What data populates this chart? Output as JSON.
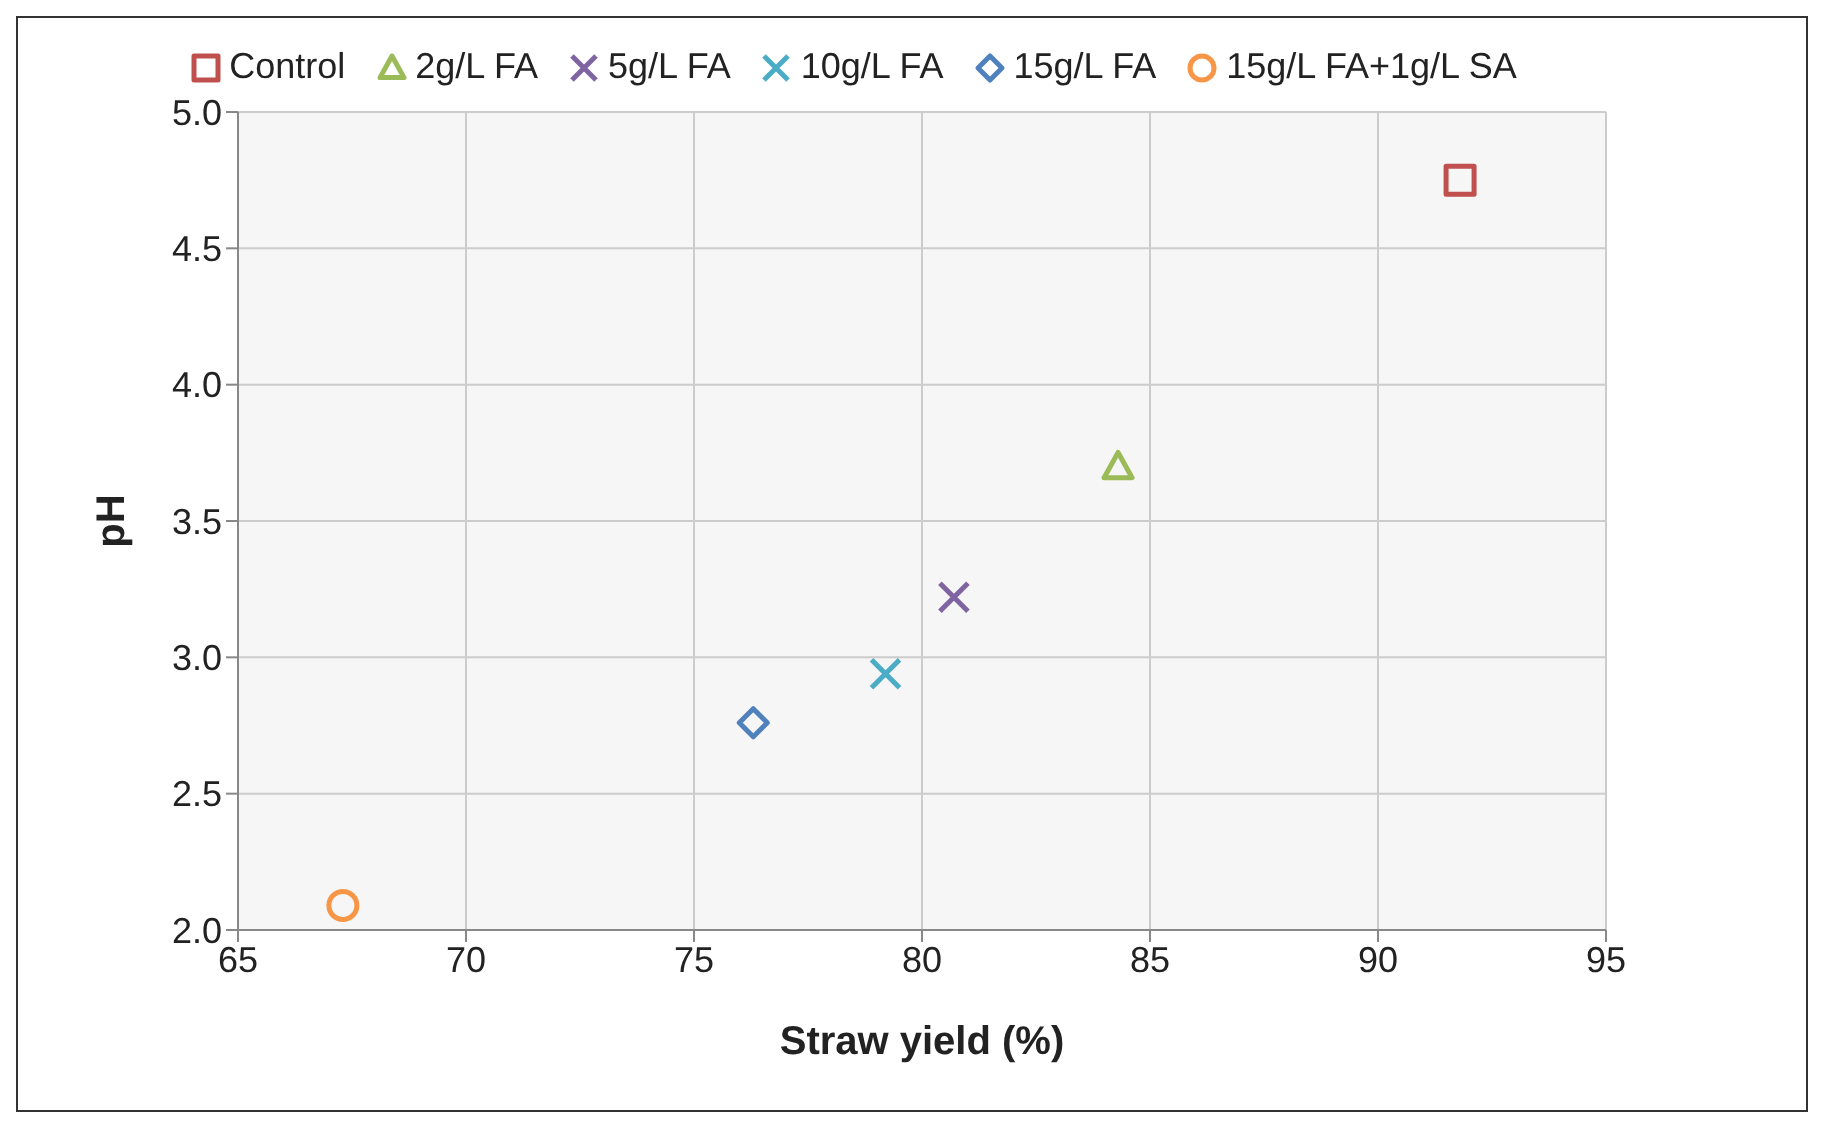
{
  "chart_data": {
    "type": "scatter",
    "xlabel": "Straw yield (%)",
    "ylabel": "pH",
    "series": [
      {
        "name": "Control",
        "color": "#c0504d",
        "marker": "square",
        "x": [
          91.8
        ],
        "values": [
          4.75
        ]
      },
      {
        "name": "2g/L FA",
        "color": "#9bbb59",
        "marker": "triangle",
        "x": [
          84.3
        ],
        "values": [
          3.7
        ]
      },
      {
        "name": "5g/L FA",
        "color": "#8064a2",
        "marker": "cross",
        "x": [
          80.7
        ],
        "values": [
          3.22
        ]
      },
      {
        "name": "10g/L FA",
        "color": "#4bacc6",
        "marker": "cross",
        "x": [
          79.2
        ],
        "values": [
          2.94
        ]
      },
      {
        "name": "15g/L FA",
        "color": "#4f81bd",
        "marker": "diamond",
        "x": [
          76.3
        ],
        "values": [
          2.76
        ]
      },
      {
        "name": "15g/L FA+1g/L SA",
        "color": "#f79646",
        "marker": "circle",
        "x": [
          67.3
        ],
        "values": [
          2.09
        ]
      }
    ],
    "xlim": [
      65,
      95
    ],
    "xticks": [
      65,
      70,
      75,
      80,
      85,
      90,
      95
    ],
    "ylim": [
      2,
      5
    ],
    "yticks": [
      {
        "value": 2,
        "label": "2.0"
      },
      {
        "value": 2.5,
        "label": "2.5"
      },
      {
        "value": 3,
        "label": "3.0"
      },
      {
        "value": 3.5,
        "label": "3.5"
      },
      {
        "value": 4,
        "label": "4.0"
      },
      {
        "value": 4.5,
        "label": "4.5"
      },
      {
        "value": 5,
        "label": "5.0"
      }
    ],
    "grid": true,
    "legend": "top"
  }
}
